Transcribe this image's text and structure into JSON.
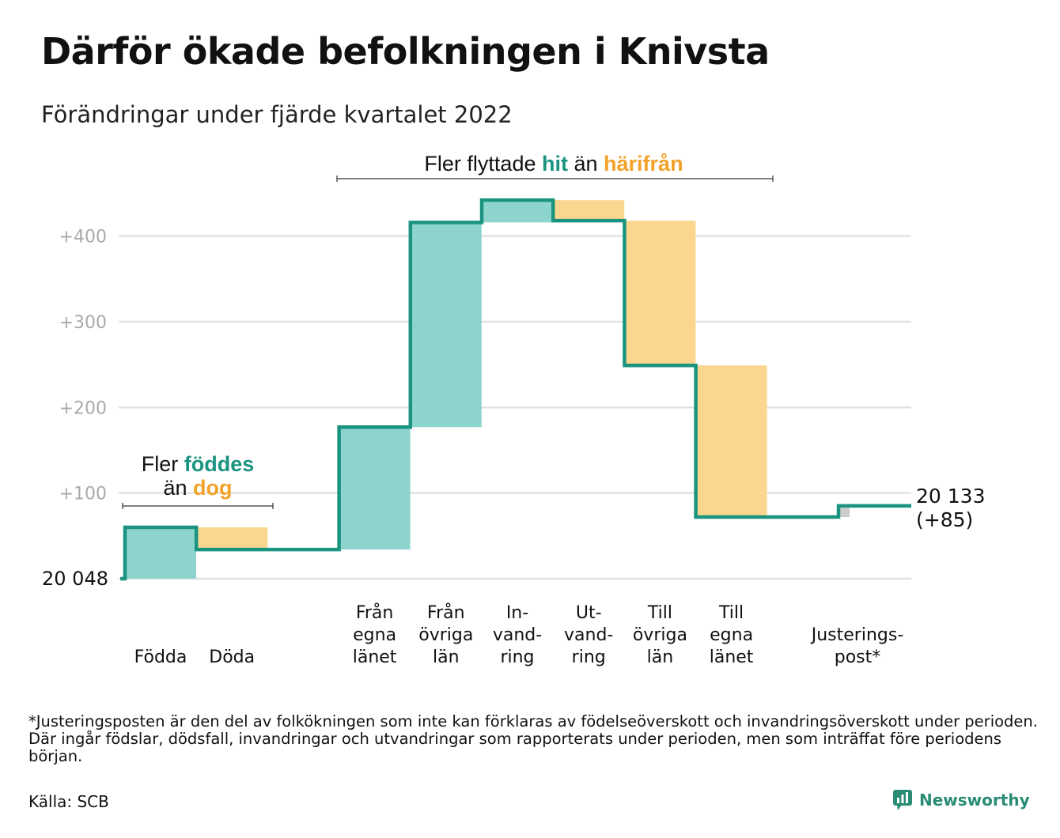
{
  "title": "Därför ökade befolkningen i Knivsta",
  "subtitle": "Förändringar under fjärde kvartalet 2022",
  "footnote": "*Justeringsposten är den del av folkökningen som inte kan förklaras av födelseöverskott och invandringsöverskott under perioden. Där ingår födslar, dödsfall, invandringar och utvandringar som rapporterats under perioden, men som inträffat före periodens början.",
  "source": "Källa: SCB",
  "brand": "Newsworthy",
  "colors": {
    "increase": "#8dd5cc",
    "decrease": "#fad68f",
    "adjustment": "#cccccc",
    "line": "#1a9480",
    "accent_teal": "#1a9480",
    "accent_orange": "#f2a229",
    "grid": "#e2e2e2",
    "tick": "#aaaaaa"
  },
  "chart_data": {
    "type": "bar",
    "subtype": "waterfall",
    "title": "Därför ökade befolkningen i Knivsta",
    "subtitle": "Förändringar under fjärde kvartalet 2022",
    "start_label": "20 048",
    "start_value": 0,
    "end_label": "20 133",
    "end_change_label": "(+85)",
    "end_value": 85,
    "ylim": [
      0,
      445
    ],
    "yticks": [
      100,
      200,
      300,
      400
    ],
    "ytick_labels": [
      "+100",
      "+200",
      "+300",
      "+400"
    ],
    "grid": true,
    "steps": [
      {
        "label": [
          "Födda"
        ],
        "value": 60,
        "kind": "increase"
      },
      {
        "label": [
          "Döda"
        ],
        "value": -26,
        "kind": "decrease"
      },
      {
        "label": [
          "Från",
          "egna",
          "länet"
        ],
        "value": 143,
        "kind": "increase"
      },
      {
        "label": [
          "Från",
          "övriga",
          "län"
        ],
        "value": 239,
        "kind": "increase"
      },
      {
        "label": [
          "In-",
          "vand-",
          "ring"
        ],
        "value": 26,
        "kind": "increase"
      },
      {
        "label": [
          "Ut-",
          "vand-",
          "ring"
        ],
        "value": -24,
        "kind": "decrease"
      },
      {
        "label": [
          "Till",
          "övriga",
          "län"
        ],
        "value": -169,
        "kind": "decrease"
      },
      {
        "label": [
          "Till",
          "egna",
          "länet"
        ],
        "value": -177,
        "kind": "decrease"
      },
      {
        "label": [
          "Justerings-",
          "post*"
        ],
        "value": 13,
        "kind": "adjustment"
      }
    ],
    "annotations": [
      {
        "parts": [
          {
            "line": [
              {
                "text": "Fler ",
                "color": "default"
              },
              {
                "text": "föddes",
                "color": "accent_teal"
              }
            ]
          },
          {
            "line": [
              {
                "text": "än ",
                "color": "default"
              },
              {
                "text": "dog",
                "color": "accent_orange"
              }
            ]
          }
        ]
      },
      {
        "parts": [
          {
            "line": [
              {
                "text": "Fler flyttade ",
                "color": "default"
              },
              {
                "text": "hit",
                "color": "accent_teal"
              },
              {
                "text": " än ",
                "color": "default"
              },
              {
                "text": "härifrån",
                "color": "accent_orange"
              }
            ]
          }
        ]
      }
    ]
  }
}
